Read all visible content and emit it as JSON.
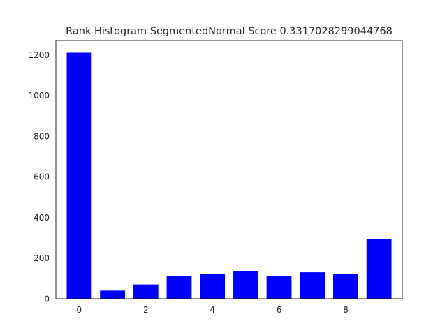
{
  "chart_data": {
    "type": "bar",
    "title": "Rank Histogram SegmentedNormal Score 0.3317028299044768",
    "xlabel": "",
    "ylabel": "",
    "x": [
      0,
      1,
      2,
      3,
      4,
      5,
      6,
      7,
      8,
      9
    ],
    "values": [
      1210,
      40,
      70,
      112,
      122,
      137,
      112,
      130,
      122,
      295
    ],
    "xticks": [
      0,
      2,
      4,
      6,
      8
    ],
    "yticks": [
      0,
      200,
      400,
      600,
      800,
      1000,
      1200
    ],
    "xlim": [
      -0.7,
      9.7
    ],
    "ylim": [
      0,
      1270
    ],
    "bar_color": "#0000ff",
    "grid": false,
    "legend": "none"
  }
}
